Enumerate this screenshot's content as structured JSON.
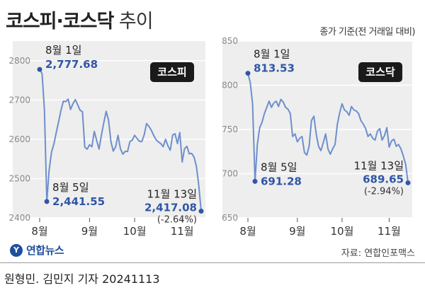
{
  "header": {
    "title_main": "코스피·코스닥",
    "title_sub": "추이",
    "subtitle": "종가 기준(전 거래일 대비)"
  },
  "footer": {
    "logo_text": "연합뉴스",
    "source": "자료: 연합인포맥스",
    "credit": "원형민. 김민지 기자  20241113"
  },
  "colors": {
    "line": "#6d8fcd",
    "marker": "#2f56a6",
    "value_text": "#2f56a6",
    "panel_bg": "#eeeeee",
    "badge_bg": "#1a1a1a"
  },
  "chart_data": [
    {
      "type": "line",
      "badge": "코스피",
      "ylim": [
        2400,
        2850
      ],
      "yticks": [
        2400,
        2500,
        2600,
        2700,
        2800
      ],
      "grid": true,
      "month_ticks": [
        {
          "label": "8월",
          "x": 0
        },
        {
          "label": "9월",
          "x": 21
        },
        {
          "label": "10월",
          "x": 40
        },
        {
          "label": "11월",
          "x": 60
        }
      ],
      "annotations": [
        {
          "x": 0,
          "date": "8월 1일",
          "value": "2,777.68",
          "position": "above-right"
        },
        {
          "x": 3,
          "date": "8월 5일",
          "value": "2,441.55",
          "position": "right"
        },
        {
          "x": 68,
          "date": "11월 13일",
          "value": "2,417.08",
          "change": "(-2.64%)",
          "position": "left"
        }
      ],
      "series": [
        {
          "values": [
            2777.68,
            2767,
            2676,
            2441.55,
            2522,
            2568,
            2588,
            2618,
            2645,
            2675,
            2697,
            2696,
            2702,
            2676,
            2690,
            2701,
            2688,
            2674,
            2670,
            2580,
            2575,
            2586,
            2581,
            2620,
            2597,
            2575,
            2611,
            2642,
            2671,
            2649,
            2594,
            2570,
            2581,
            2610,
            2576,
            2562,
            2569,
            2569,
            2594,
            2598,
            2610,
            2602,
            2595,
            2594,
            2611,
            2640,
            2633,
            2623,
            2610,
            2599,
            2593,
            2589,
            2581,
            2600,
            2583,
            2572,
            2611,
            2614,
            2589,
            2617,
            2542,
            2576,
            2582,
            2563,
            2564,
            2555,
            2531,
            2482.57,
            2417.08
          ]
        }
      ]
    },
    {
      "type": "line",
      "badge": "코스닥",
      "ylim": [
        650,
        850
      ],
      "yticks": [
        650,
        700,
        750,
        800,
        850
      ],
      "grid": true,
      "month_ticks": [
        {
          "label": "8월",
          "x": 0
        },
        {
          "label": "9월",
          "x": 21
        },
        {
          "label": "10월",
          "x": 40
        },
        {
          "label": "11월",
          "x": 60
        }
      ],
      "annotations": [
        {
          "x": 0,
          "date": "8월 1일",
          "value": "813.53",
          "position": "above-right"
        },
        {
          "x": 3,
          "date": "8월 5일",
          "value": "691.28",
          "position": "right"
        },
        {
          "x": 68,
          "date": "11월 13일",
          "value": "689.65",
          "change": "(-2.94%)",
          "position": "left"
        }
      ],
      "series": [
        {
          "values": [
            813.53,
            803,
            779,
            691.28,
            733,
            752,
            758,
            768,
            775,
            782,
            775,
            780,
            782,
            776,
            784,
            781,
            775,
            773,
            768,
            742,
            745,
            736,
            740,
            742,
            724,
            721,
            731,
            760,
            765,
            745,
            731,
            726,
            735,
            745,
            728,
            722,
            728,
            733,
            756,
            769,
            779,
            772,
            770,
            766,
            776,
            772,
            771,
            768,
            760,
            756,
            751,
            742,
            745,
            740,
            738,
            748,
            751,
            738,
            743,
            752,
            730,
            737,
            739,
            731,
            733,
            728,
            720,
            710.52,
            689.65
          ]
        }
      ]
    }
  ]
}
